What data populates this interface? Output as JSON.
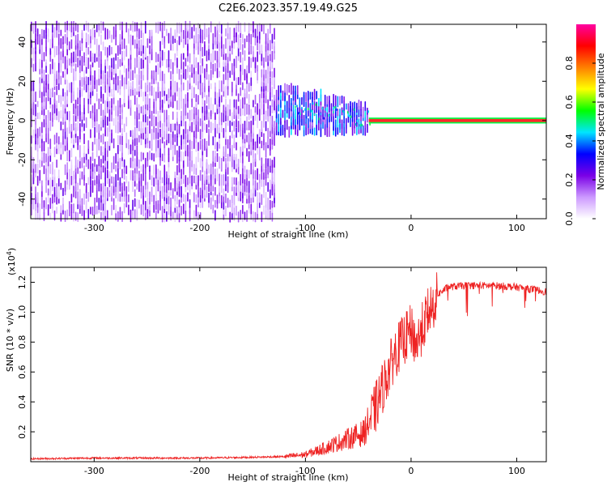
{
  "title": "C2E6.2023.357.19.49.G25",
  "chart_data": [
    {
      "type": "heatmap",
      "title": "C2E6.2023.357.19.49.G25",
      "xlabel": "Height of straight line (km)",
      "ylabel": "Frequency (Hz)",
      "xlim": [
        -360,
        128
      ],
      "ylim": [
        -50,
        49
      ],
      "x_ticks": [
        -300,
        -200,
        -100,
        0,
        100
      ],
      "y_ticks": [
        -40,
        -20,
        0,
        20,
        40
      ],
      "colorbar": {
        "label": "Normalized spectral amplitude",
        "range": [
          0,
          1
        ],
        "ticks": [
          0.0,
          0.2,
          0.4,
          0.6,
          0.8
        ],
        "colors": [
          "#ffffff",
          "#cc99ff",
          "#7a00e6",
          "#0000ff",
          "#00e5ff",
          "#00ff00",
          "#ffff00",
          "#ff7f00",
          "#ff0000",
          "#ff00a0"
        ]
      },
      "regions": [
        {
          "name": "noise",
          "x": [
            -360,
            -130
          ],
          "freq_band": [
            -50,
            49
          ],
          "amplitude": [
            0.05,
            0.25
          ]
        },
        {
          "name": "transition",
          "x": [
            -130,
            -40
          ],
          "freq_band_center": 0,
          "freq_band_halfwidth": [
            12,
            6
          ],
          "amplitude": [
            0.15,
            0.45
          ]
        },
        {
          "name": "tone",
          "x": [
            -40,
            128
          ],
          "frequency": 0,
          "amplitude": 1.0
        }
      ]
    },
    {
      "type": "line",
      "xlabel": "Height of straight line (km)",
      "ylabel": "SNR (10 * v/v)",
      "exponent_label": "(x10",
      "exponent_value": "4",
      "exponent_suffix": ")",
      "xlim": [
        -360,
        128
      ],
      "ylim": [
        0,
        1.3
      ],
      "x_ticks": [
        -300,
        -200,
        -100,
        0,
        100
      ],
      "y_ticks": [
        0.2,
        0.4,
        0.6,
        0.8,
        1.0,
        1.2
      ],
      "series": [
        {
          "name": "SNR",
          "color": "#ee2222",
          "x": [
            -360,
            -300,
            -200,
            -150,
            -120,
            -100,
            -80,
            -60,
            -45,
            -35,
            -25,
            -15,
            -5,
            0,
            5,
            10,
            15,
            25,
            35,
            50,
            80,
            100,
            128
          ],
          "values": [
            0.02,
            0.025,
            0.025,
            0.03,
            0.035,
            0.05,
            0.1,
            0.16,
            0.2,
            0.35,
            0.55,
            0.75,
            0.85,
            0.9,
            0.8,
            0.9,
            1.0,
            1.12,
            1.17,
            1.18,
            1.18,
            1.17,
            1.14
          ]
        }
      ]
    }
  ]
}
